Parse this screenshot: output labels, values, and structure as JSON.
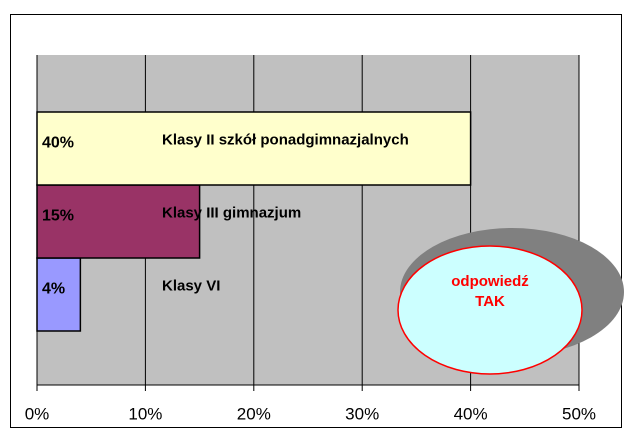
{
  "chart_data": {
    "type": "bar",
    "orientation": "horizontal",
    "categories": [
      "Klasy VI",
      "Klasy III gimnazjum",
      "Klasy II szkół ponadgimnazjalnych"
    ],
    "values": [
      4,
      15,
      40
    ],
    "value_labels": [
      "4%",
      "15%",
      "40%"
    ],
    "colors": [
      "#9999ff",
      "#993366",
      "#ffffcc"
    ],
    "xlim": [
      0,
      50
    ],
    "xticks": [
      {
        "value": 0,
        "label": "0%"
      },
      {
        "value": 10,
        "label": "10%"
      },
      {
        "value": 20,
        "label": "20%"
      },
      {
        "value": 30,
        "label": "30%"
      },
      {
        "value": 40,
        "label": "40%"
      },
      {
        "value": 50,
        "label": "50%"
      }
    ],
    "grid": true,
    "annotation": {
      "line1": "odpowiedź",
      "line2": "TAK"
    }
  }
}
